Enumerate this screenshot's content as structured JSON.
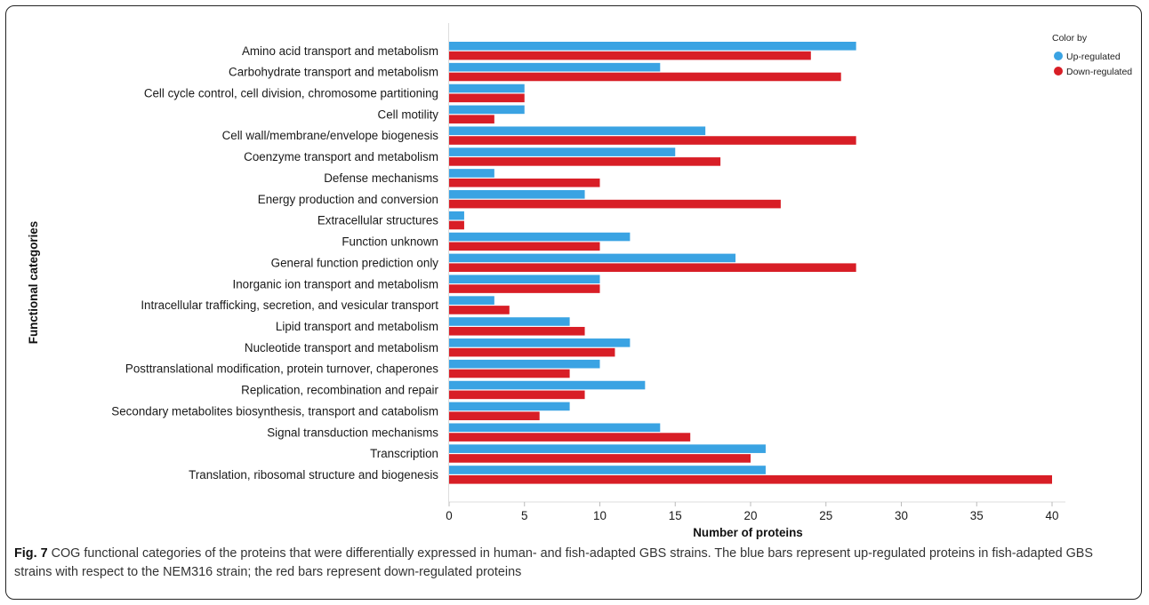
{
  "chart_data": {
    "type": "bar",
    "orientation": "horizontal",
    "categories": [
      "Amino acid transport and metabolism",
      "Carbohydrate transport and metabolism",
      "Cell cycle control, cell division, chromosome partitioning",
      "Cell motility",
      "Cell wall/membrane/envelope biogenesis",
      "Coenzyme transport and metabolism",
      "Defense mechanisms",
      "Energy production and conversion",
      "Extracellular structures",
      "Function unknown",
      "General function prediction only",
      "Inorganic ion transport and metabolism",
      "Intracellular trafficking, secretion, and vesicular transport",
      "Lipid transport and metabolism",
      "Nucleotide transport and metabolism",
      "Posttranslational modification, protein turnover, chaperones",
      "Replication, recombination and repair",
      "Secondary metabolites biosynthesis, transport and catabolism",
      "Signal transduction mechanisms",
      "Transcription",
      "Translation, ribosomal structure and biogenesis"
    ],
    "series": [
      {
        "name": "Up-regulated",
        "color": "#3aa3e3",
        "values": [
          27,
          14,
          5,
          5,
          17,
          15,
          3,
          9,
          1,
          12,
          19,
          10,
          3,
          8,
          12,
          10,
          13,
          8,
          14,
          21,
          21
        ]
      },
      {
        "name": "Down-regulated",
        "color": "#d81e26",
        "values": [
          24,
          26,
          5,
          3,
          27,
          18,
          10,
          22,
          1,
          10,
          27,
          10,
          4,
          9,
          11,
          8,
          9,
          6,
          16,
          20,
          40
        ]
      }
    ],
    "xlabel": "Number of proteins",
    "ylabel": "Functional categories",
    "xlim": [
      0,
      40
    ],
    "xticks": [
      0,
      5,
      10,
      15,
      20,
      25,
      30,
      35,
      40
    ],
    "grid": false,
    "legend": {
      "title": "Color by",
      "position": "top-right"
    }
  },
  "caption": {
    "label": "Fig. 7",
    "text": " COG functional categories of the proteins that were differentially expressed in human- and fish-adapted GBS strains. The blue bars represent up-regulated proteins in fish-adapted GBS strains with respect to the NEM316 strain; the red bars represent down-regulated proteins"
  }
}
